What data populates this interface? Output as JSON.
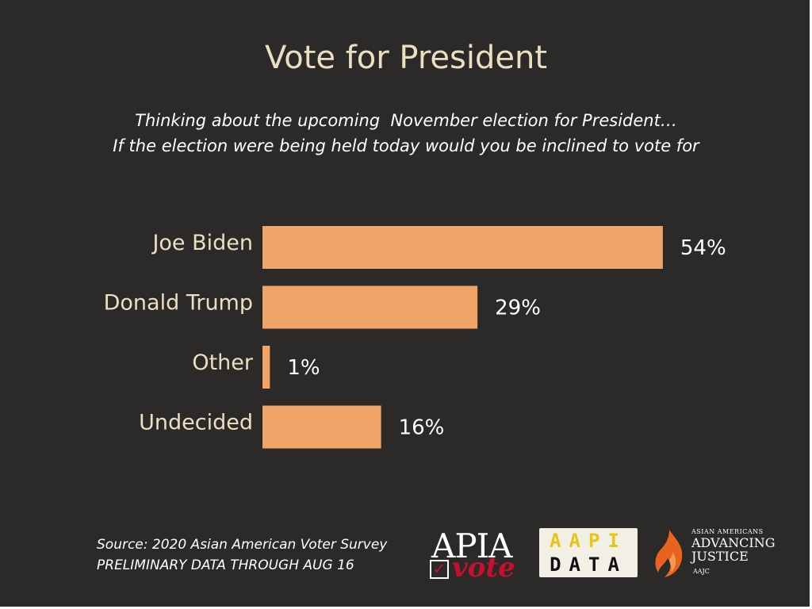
{
  "title": "Vote for President",
  "subtitle": {
    "line1": "Thinking about the upcoming  November election for President…",
    "line2": "If the election were being held today would you be inclined to vote for"
  },
  "chart_data": {
    "type": "bar",
    "orientation": "horizontal",
    "categories": [
      "Joe Biden",
      "Donald Trump",
      "Other",
      "Undecided"
    ],
    "values": [
      54,
      29,
      1,
      16
    ],
    "value_labels": [
      "54%",
      "29%",
      "1%",
      "16%"
    ],
    "unit": "%",
    "bar_color": "#f0a468",
    "xlim": [
      0,
      60
    ],
    "grid": false,
    "legend": "none"
  },
  "source": {
    "line1": "Source: 2020 Asian American Voter Survey",
    "line2": "PRELIMINARY DATA THROUGH AUG 16"
  },
  "logos": {
    "apia": {
      "text": "APIA",
      "subtext": "vote",
      "check": "✓"
    },
    "aapi_data": {
      "line1": "AAPI",
      "line2": "DATA"
    },
    "aajc": {
      "small": "ASIAN AMERICANS",
      "line1": "ADVANCING",
      "line2": "JUSTICE",
      "tiny": "AAJC"
    }
  },
  "colors": {
    "background": "#2b2a29",
    "title": "#ecdfc0",
    "bar": "#f0a468",
    "apia_red": "#c8102e",
    "aajc_orange": "#e8641e"
  }
}
